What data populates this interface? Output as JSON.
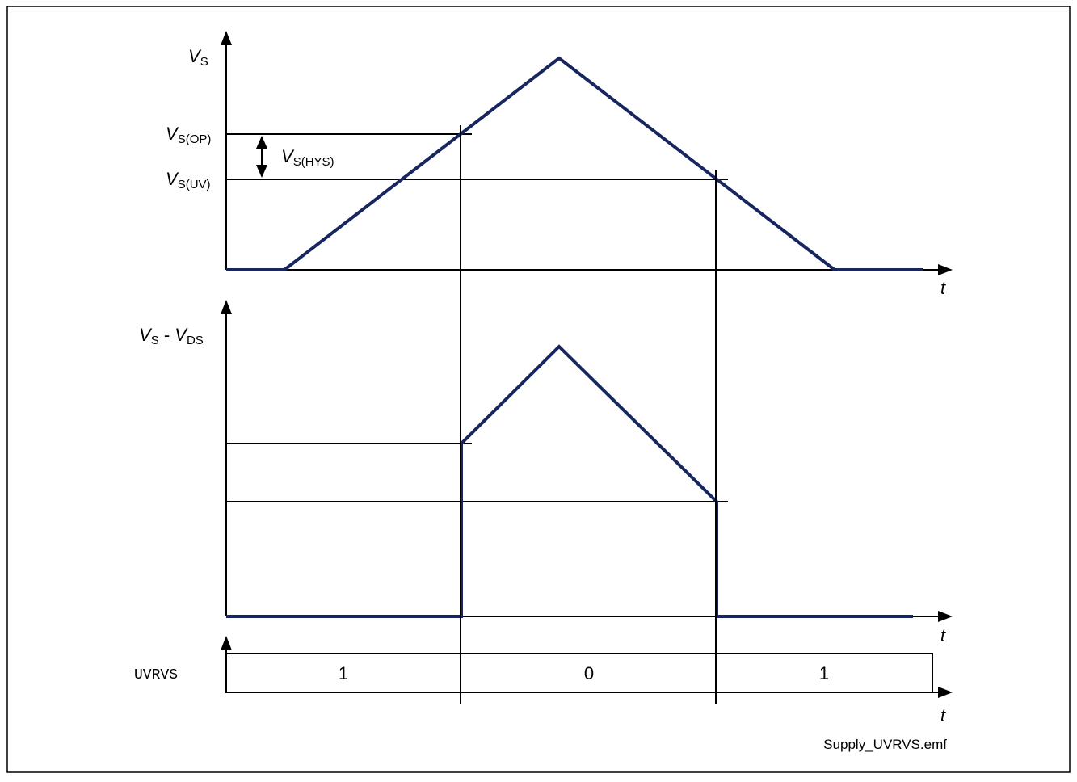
{
  "diagram": {
    "filename": "Supply_UVRVS.emf",
    "colors": {
      "waveform": "#17265e",
      "lines": "#000000",
      "background": "#ffffff"
    },
    "top_plot": {
      "y_label_main": "V",
      "y_label_sub": "S",
      "x_label": "t",
      "level_op_main": "V",
      "level_op_sub": "S(OP)",
      "level_uv_main": "V",
      "level_uv_sub": "S(UV)",
      "hysteresis_main": "V",
      "hysteresis_sub": "S(HYS)"
    },
    "middle_plot": {
      "y_label_v1": "V",
      "y_label_s1": "S",
      "y_label_minus": " - ",
      "y_label_v2": "V",
      "y_label_s2": "DS",
      "x_label": "t"
    },
    "bottom_plot": {
      "signal_name": "UVRVS",
      "x_label": "t",
      "segment_values": [
        "1",
        "0",
        "1"
      ]
    }
  }
}
